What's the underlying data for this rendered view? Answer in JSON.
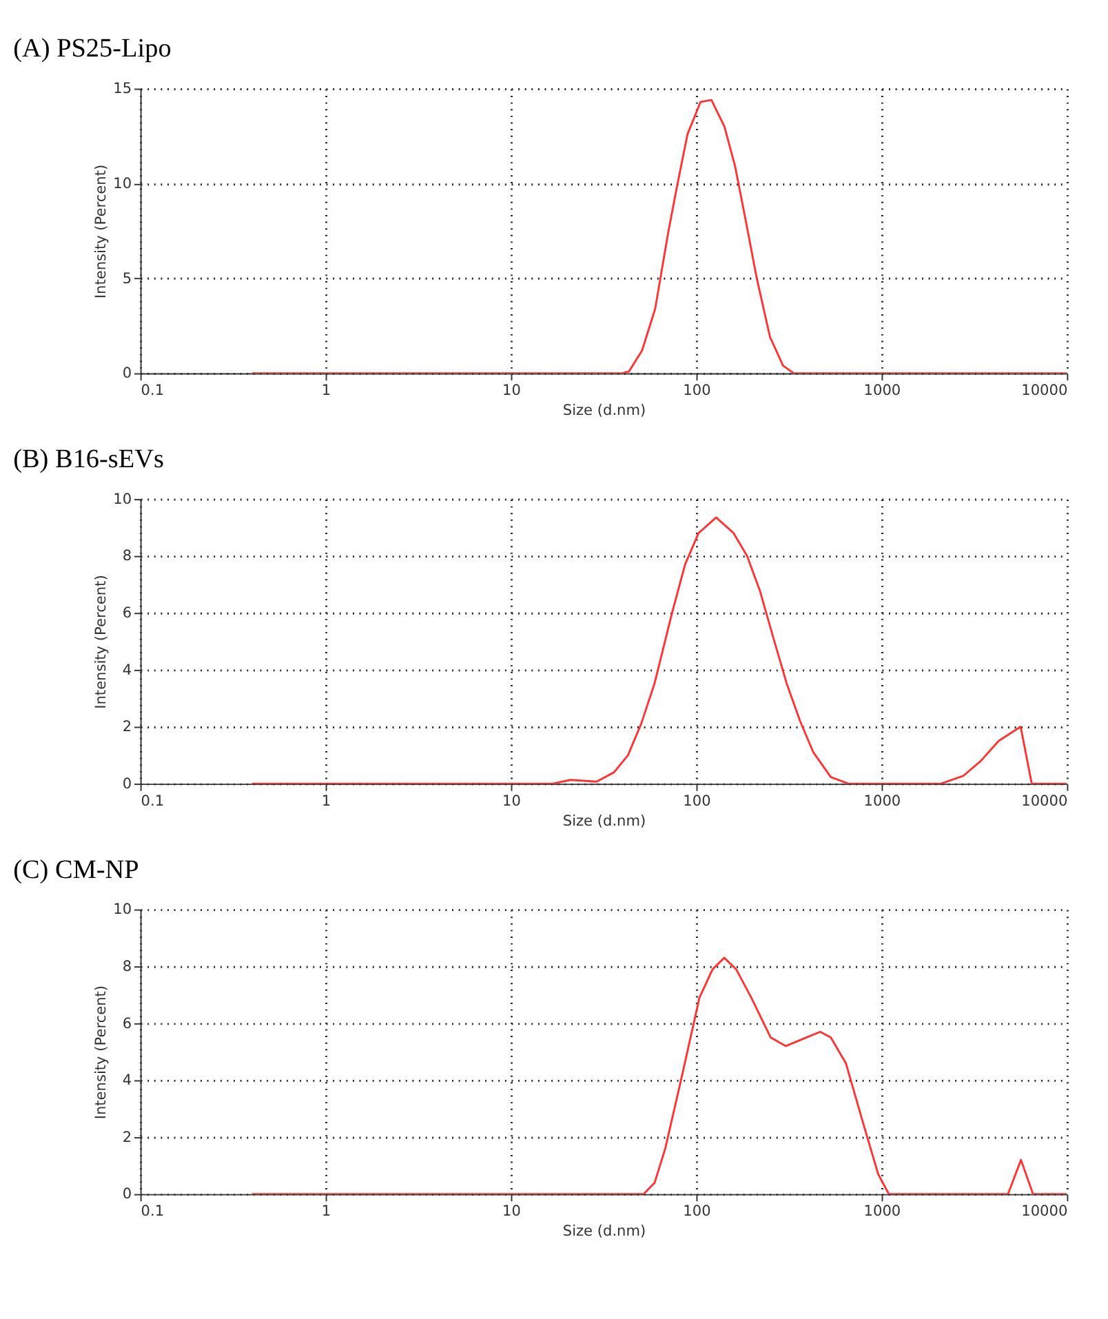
{
  "chart_data": [
    {
      "type": "line",
      "title": "(A) PS25-Lipo",
      "xlabel": "Size (d.nm)",
      "ylabel": "Intensity (Percent)",
      "log": "x",
      "grid": true,
      "xlim": [
        0.1,
        10000
      ],
      "xticks": [
        0.1,
        1,
        10,
        100,
        1000,
        10000
      ],
      "ylim": [
        0,
        15
      ],
      "yticks": [
        0,
        5,
        10,
        15
      ],
      "series": [
        {
          "color": "#ff3333",
          "x": [
            0.4,
            40,
            43.4,
            51,
            60,
            70.5,
            78.5,
            89.7,
            105.5,
            120.7,
            141.8,
            162,
            186,
            212,
            250,
            294,
            336,
            10000
          ],
          "values": [
            0,
            0,
            0.1,
            1.2,
            3.4,
            7.4,
            9.8,
            12.6,
            14.3,
            14.4,
            13.0,
            10.9,
            7.9,
            5.0,
            1.9,
            0.4,
            0,
            0
          ]
        }
      ]
    },
    {
      "type": "line",
      "title": "(B) B16-sEVs",
      "xlabel": "Size (d.nm)",
      "ylabel": "Intensity (Percent)",
      "log": "x",
      "grid": true,
      "xlim": [
        0.1,
        10000
      ],
      "xticks": [
        0.1,
        1,
        10,
        100,
        1000,
        10000
      ],
      "ylim": [
        0,
        10
      ],
      "yticks": [
        0,
        2,
        4,
        6,
        8,
        10
      ],
      "series": [
        {
          "color": "#ff3333",
          "x": [
            0.4,
            16.8,
            21,
            29,
            36,
            42.8,
            50.4,
            59.4,
            74,
            87,
            102.8,
            128,
            159,
            188,
            221,
            261,
            308,
            363,
            428,
            532,
            662,
            2094,
            2754,
            3432,
            4276,
            5623,
            6457,
            10000
          ],
          "values": [
            0,
            0,
            0.13,
            0.07,
            0.4,
            1.0,
            2.1,
            3.5,
            6.0,
            7.7,
            8.8,
            9.35,
            8.8,
            8.0,
            6.75,
            5.1,
            3.5,
            2.2,
            1.1,
            0.23,
            0,
            0,
            0.27,
            0.8,
            1.5,
            2.0,
            0,
            0
          ]
        }
      ]
    },
    {
      "type": "line",
      "title": "(C) CM-NP",
      "xlabel": "Size (d.nm)",
      "ylabel": "Intensity (Percent)",
      "log": "x",
      "grid": true,
      "xlim": [
        0.1,
        10000
      ],
      "xticks": [
        0.1,
        1,
        10,
        100,
        1000,
        10000
      ],
      "ylim": [
        0,
        10
      ],
      "yticks": [
        0,
        2,
        4,
        6,
        8,
        10
      ],
      "series": [
        {
          "color": "#ff3333",
          "x": [
            0.4,
            52,
            59.6,
            68,
            82,
            104,
            122.5,
            141.5,
            164,
            198,
            252,
            304,
            376,
            466,
            532,
            641,
            794,
            958,
            1094,
            4808,
            5649,
            6561,
            10000
          ],
          "values": [
            0,
            0,
            0.4,
            1.6,
            3.9,
            6.9,
            7.9,
            8.3,
            7.9,
            6.9,
            5.5,
            5.2,
            5.45,
            5.7,
            5.5,
            4.6,
            2.5,
            0.7,
            0,
            0,
            1.2,
            0,
            0
          ]
        }
      ]
    }
  ]
}
